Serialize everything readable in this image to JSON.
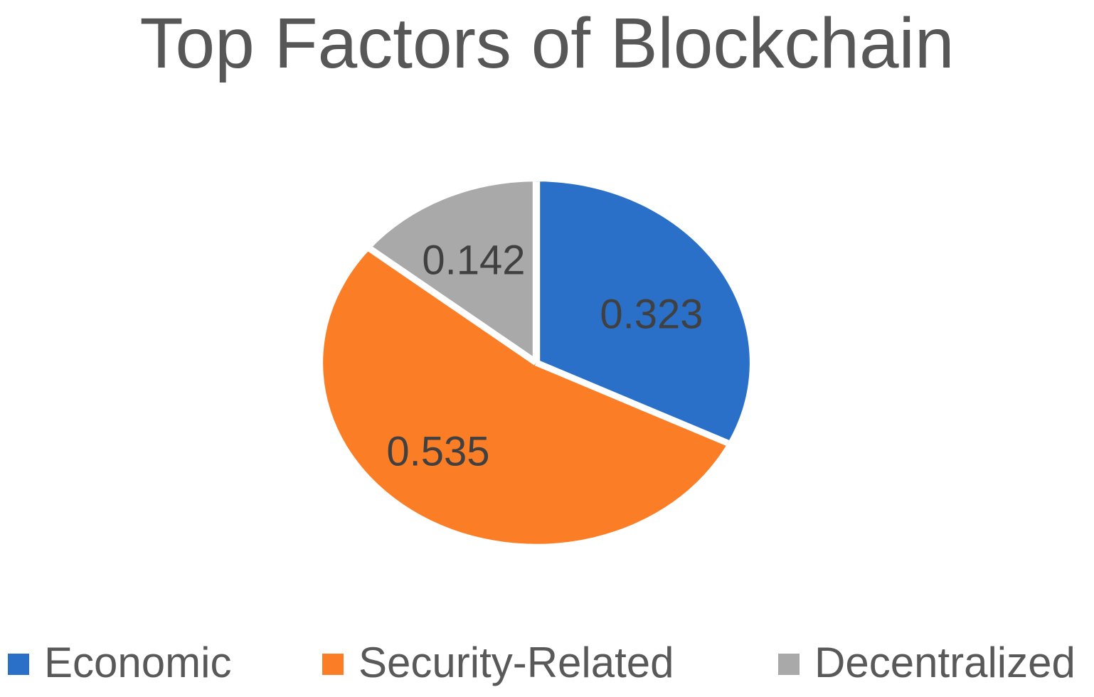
{
  "title": "Top Factors of Blockchain",
  "chart_data": {
    "type": "pie",
    "title": "Top Factors of Blockchain",
    "categories": [
      "Economic",
      "Security-Related",
      "Decentralized"
    ],
    "values": [
      0.323,
      0.535,
      0.142
    ],
    "labels": [
      "0.323",
      "0.535",
      "0.142"
    ],
    "colors": [
      "#2A70C8",
      "#FB7D26",
      "#A9A9A9"
    ],
    "start_angle_deg": 0,
    "direction": "clockwise",
    "separator_color": "#FFFFFF",
    "label_color": "#404040",
    "title_color": "#575757",
    "legend_text_color": "#595959",
    "legend_position": "bottom",
    "background": "#FFFFFF"
  },
  "legend": {
    "items": [
      {
        "label": "Economic",
        "color": "#2A70C8"
      },
      {
        "label": "Security-Related",
        "color": "#FB7D26"
      },
      {
        "label": "Decentralized",
        "color": "#A9A9A9"
      }
    ]
  }
}
